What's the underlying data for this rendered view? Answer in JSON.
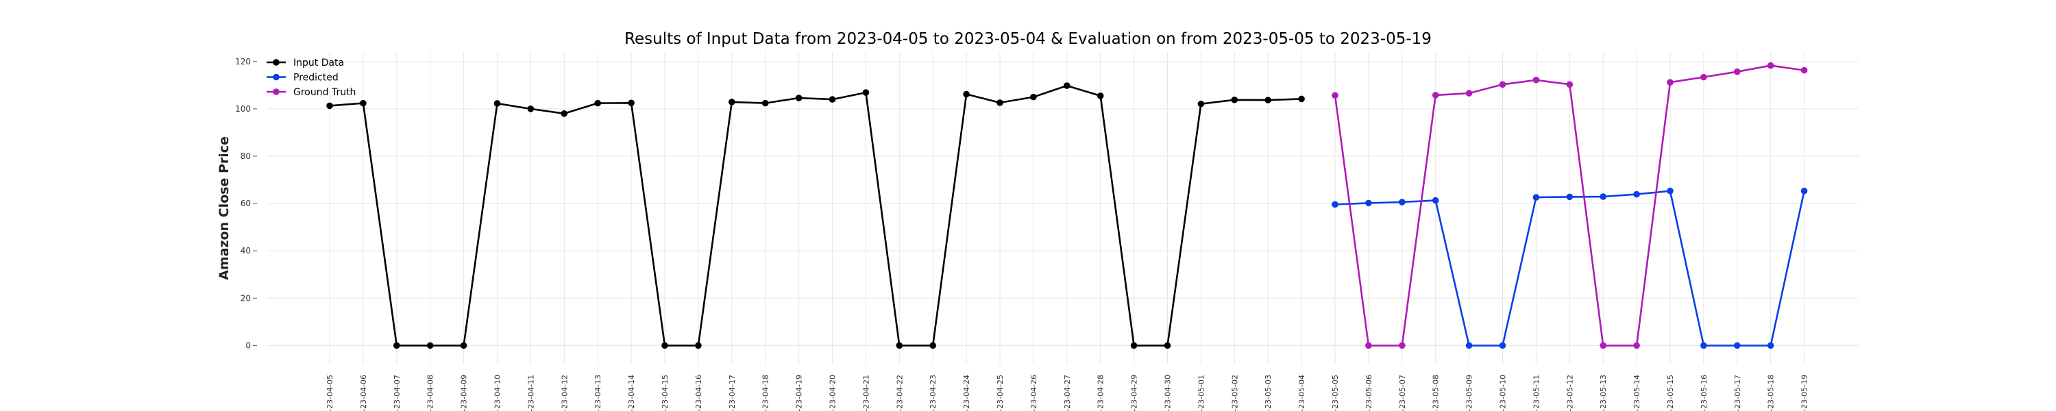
{
  "chart_data": {
    "type": "line",
    "title": "Results of Input Data from 2023-04-05 to 2023-05-04 & Evaluation on from 2023-05-05 to 2023-05-19",
    "xlabel": "",
    "ylabel": "Amazon Close Price",
    "ylim": [
      -8,
      124
    ],
    "yticks": [
      0,
      20,
      40,
      60,
      80,
      100,
      120
    ],
    "grid": true,
    "legend_position": "top-left",
    "categories": [
      "2023-04-05",
      "2023-04-06",
      "2023-04-07",
      "2023-04-08",
      "2023-04-09",
      "2023-04-10",
      "2023-04-11",
      "2023-04-12",
      "2023-04-13",
      "2023-04-14",
      "2023-04-15",
      "2023-04-16",
      "2023-04-17",
      "2023-04-18",
      "2023-04-19",
      "2023-04-20",
      "2023-04-21",
      "2023-04-22",
      "2023-04-23",
      "2023-04-24",
      "2023-04-25",
      "2023-04-26",
      "2023-04-27",
      "2023-04-28",
      "2023-04-29",
      "2023-04-30",
      "2023-05-01",
      "2023-05-02",
      "2023-05-03",
      "2023-05-04",
      "2023-05-05",
      "2023-05-06",
      "2023-05-07",
      "2023-05-08",
      "2023-05-09",
      "2023-05-10",
      "2023-05-11",
      "2023-05-12",
      "2023-05-13",
      "2023-05-14",
      "2023-05-15",
      "2023-05-16",
      "2023-05-17",
      "2023-05-18",
      "2023-05-19"
    ],
    "xtick_labels": [
      "-23-04-05",
      "-23-04-06",
      "-23-04-07",
      "-23-04-08",
      "-23-04-09",
      "-23-04-10",
      "-23-04-11",
      "-23-04-12",
      "-23-04-13",
      "-23-04-14",
      "-23-04-15",
      "-23-04-16",
      "-23-04-17",
      "-23-04-18",
      "-23-04-19",
      "-23-04-20",
      "-23-04-21",
      "-23-04-22",
      "-23-04-23",
      "-23-04-24",
      "-23-04-25",
      "-23-04-26",
      "-23-04-27",
      "-23-04-28",
      "-23-04-29",
      "-23-04-30",
      "-23-05-01",
      "-23-05-02",
      "-23-05-03",
      "-23-05-04",
      "-23-05-05",
      "-23-05-06",
      "-23-05-07",
      "-23-05-08",
      "-23-05-09",
      "-23-05-10",
      "-23-05-11",
      "-23-05-12",
      "-23-05-13",
      "-23-05-14",
      "-23-05-15",
      "-23-05-16",
      "-23-05-17",
      "-23-05-18",
      "-23-05-19"
    ],
    "series": [
      {
        "name": "Input Data",
        "color": "#000000",
        "x": [
          "2023-04-05",
          "2023-04-06",
          "2023-04-07",
          "2023-04-08",
          "2023-04-09",
          "2023-04-10",
          "2023-04-11",
          "2023-04-12",
          "2023-04-13",
          "2023-04-14",
          "2023-04-15",
          "2023-04-16",
          "2023-04-17",
          "2023-04-18",
          "2023-04-19",
          "2023-04-20",
          "2023-04-21",
          "2023-04-22",
          "2023-04-23",
          "2023-04-24",
          "2023-04-25",
          "2023-04-26",
          "2023-04-27",
          "2023-04-28",
          "2023-04-29",
          "2023-04-30",
          "2023-05-01",
          "2023-05-02",
          "2023-05-03",
          "2023-05-04"
        ],
        "values": [
          101.3,
          102.4,
          0,
          0,
          0,
          102.3,
          100.0,
          98.0,
          102.4,
          102.5,
          0,
          0,
          102.9,
          102.4,
          104.6,
          104.0,
          106.9,
          0,
          0,
          106.2,
          102.6,
          105.0,
          109.8,
          105.5,
          0,
          0,
          102.1,
          103.8,
          103.7,
          104.2
        ]
      },
      {
        "name": "Predicted",
        "color": "#0a3ee8",
        "x": [
          "2023-05-05",
          "2023-05-06",
          "2023-05-07",
          "2023-05-08",
          "2023-05-09",
          "2023-05-10",
          "2023-05-11",
          "2023-05-12",
          "2023-05-13",
          "2023-05-14",
          "2023-05-15",
          "2023-05-16",
          "2023-05-17",
          "2023-05-18",
          "2023-05-19"
        ],
        "values": [
          59.6,
          60.2,
          60.6,
          61.3,
          0,
          0,
          62.6,
          62.8,
          62.9,
          63.9,
          65.3,
          0,
          0,
          0,
          65.3
        ]
      },
      {
        "name": "Ground Truth",
        "color": "#b01ab8",
        "x": [
          "2023-05-05",
          "2023-05-06",
          "2023-05-07",
          "2023-05-08",
          "2023-05-09",
          "2023-05-10",
          "2023-05-11",
          "2023-05-12",
          "2023-05-13",
          "2023-05-14",
          "2023-05-15",
          "2023-05-16",
          "2023-05-17",
          "2023-05-18",
          "2023-05-19"
        ],
        "values": [
          105.7,
          0,
          0,
          105.8,
          106.6,
          110.3,
          112.2,
          110.3,
          0,
          0,
          111.2,
          113.4,
          115.7,
          118.3,
          116.3
        ]
      }
    ]
  }
}
